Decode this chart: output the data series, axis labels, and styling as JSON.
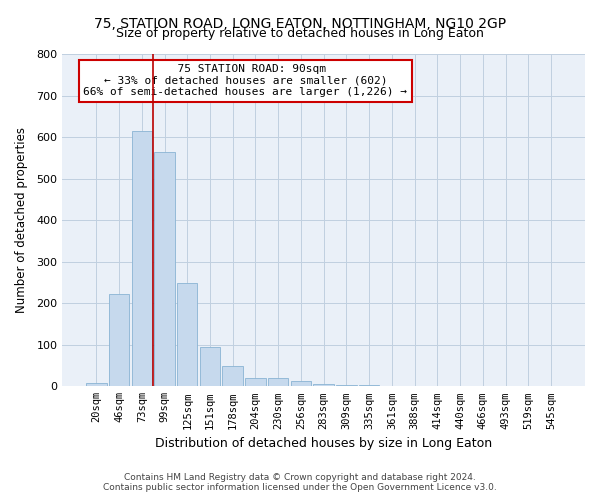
{
  "title": "75, STATION ROAD, LONG EATON, NOTTINGHAM, NG10 2GP",
  "subtitle": "Size of property relative to detached houses in Long Eaton",
  "xlabel": "Distribution of detached houses by size in Long Eaton",
  "ylabel": "Number of detached properties",
  "bar_color": "#c6d9ed",
  "bar_edge_color": "#8ab4d4",
  "background_color": "#ffffff",
  "plot_bg_color": "#eaf0f8",
  "grid_color": "#c0cfe0",
  "categories": [
    "20sqm",
    "46sqm",
    "73sqm",
    "99sqm",
    "125sqm",
    "151sqm",
    "178sqm",
    "204sqm",
    "230sqm",
    "256sqm",
    "283sqm",
    "309sqm",
    "335sqm",
    "361sqm",
    "388sqm",
    "414sqm",
    "440sqm",
    "466sqm",
    "493sqm",
    "519sqm",
    "545sqm"
  ],
  "values": [
    8,
    222,
    615,
    565,
    248,
    95,
    48,
    20,
    20,
    13,
    5,
    2,
    2,
    1,
    0,
    0,
    0,
    0,
    0,
    0,
    0
  ],
  "ylim": [
    0,
    800
  ],
  "yticks": [
    0,
    100,
    200,
    300,
    400,
    500,
    600,
    700,
    800
  ],
  "property_label": "75 STATION ROAD: 90sqm",
  "pct_smaller": 33,
  "n_smaller": 602,
  "pct_larger_semi": 66,
  "n_larger_semi": 1226,
  "vline_x": 2.5,
  "footer_line1": "Contains HM Land Registry data © Crown copyright and database right 2024.",
  "footer_line2": "Contains public sector information licensed under the Open Government Licence v3.0."
}
